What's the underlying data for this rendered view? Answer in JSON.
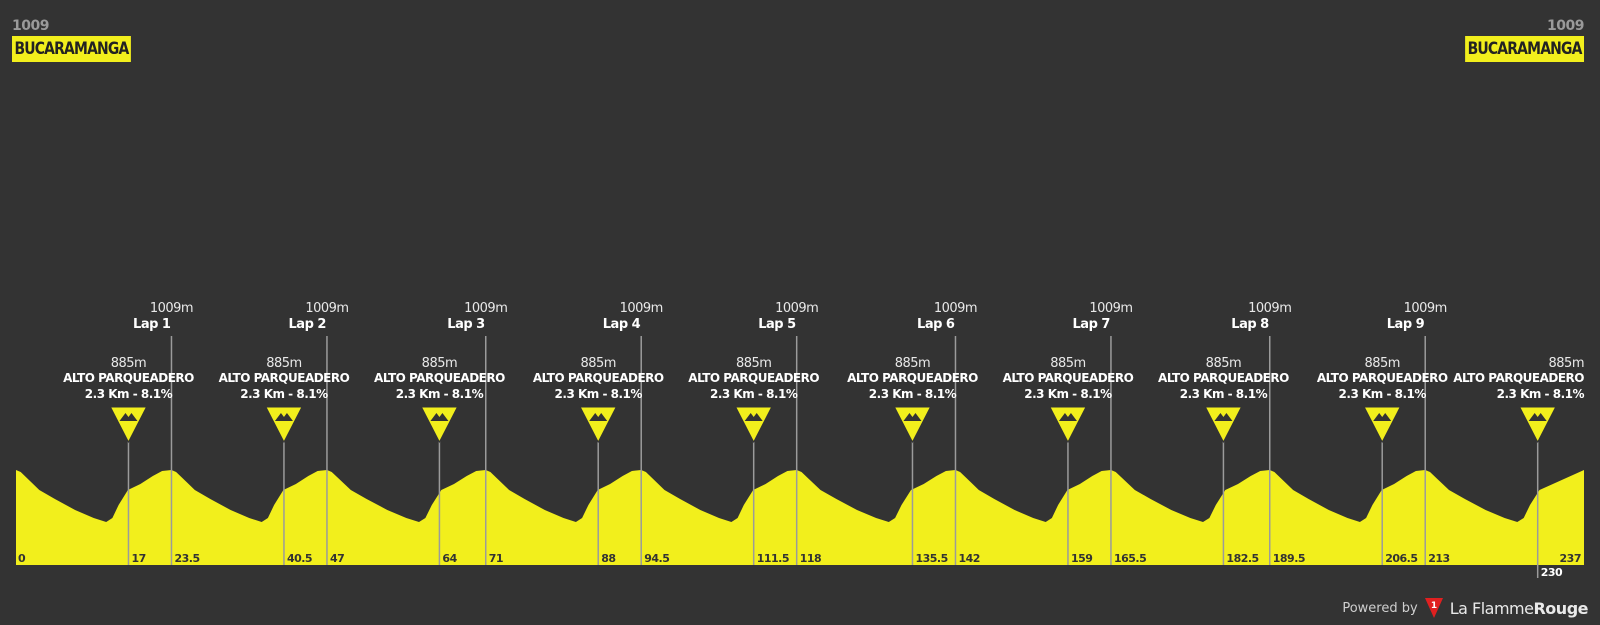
{
  "start": {
    "altitude": "1009",
    "name": "BUCARAMANGA"
  },
  "finish": {
    "altitude": "1009",
    "name": "BUCARAMANGA"
  },
  "laps": [
    {
      "label": "Lap 1",
      "altitude": "1009m",
      "km": 23.5,
      "km_label": "23.5"
    },
    {
      "label": "Lap 2",
      "altitude": "1009m",
      "km": 47,
      "km_label": "47"
    },
    {
      "label": "Lap 3",
      "altitude": "1009m",
      "km": 71,
      "km_label": "71"
    },
    {
      "label": "Lap 4",
      "altitude": "1009m",
      "km": 94.5,
      "km_label": "94.5"
    },
    {
      "label": "Lap 5",
      "altitude": "1009m",
      "km": 118,
      "km_label": "118"
    },
    {
      "label": "Lap 6",
      "altitude": "1009m",
      "km": 142,
      "km_label": "142"
    },
    {
      "label": "Lap 7",
      "altitude": "1009m",
      "km": 165.5,
      "km_label": "165.5"
    },
    {
      "label": "Lap 8",
      "altitude": "1009m",
      "km": 189.5,
      "km_label": "189.5"
    },
    {
      "label": "Lap 9",
      "altitude": "1009m",
      "km": 213,
      "km_label": "213"
    }
  ],
  "climbs": [
    {
      "name": "ALTO PARQUEADERO",
      "altitude": "885m",
      "detail": "2.3 Km - 8.1%",
      "km": 17,
      "km_label": "17"
    },
    {
      "name": "ALTO PARQUEADERO",
      "altitude": "885m",
      "detail": "2.3 Km - 8.1%",
      "km": 40.5,
      "km_label": "40.5"
    },
    {
      "name": "ALTO PARQUEADERO",
      "altitude": "885m",
      "detail": "2.3 Km - 8.1%",
      "km": 64,
      "km_label": "64"
    },
    {
      "name": "ALTO PARQUEADERO",
      "altitude": "885m",
      "detail": "2.3 Km - 8.1%",
      "km": 88,
      "km_label": "88"
    },
    {
      "name": "ALTO PARQUEADERO",
      "altitude": "885m",
      "detail": "2.3 Km - 8.1%",
      "km": 111.5,
      "km_label": "111.5"
    },
    {
      "name": "ALTO PARQUEADERO",
      "altitude": "885m",
      "detail": "2.3 Km - 8.1%",
      "km": 135.5,
      "km_label": "135.5"
    },
    {
      "name": "ALTO PARQUEADERO",
      "altitude": "885m",
      "detail": "2.3 Km - 8.1%",
      "km": 159,
      "km_label": "159"
    },
    {
      "name": "ALTO PARQUEADERO",
      "altitude": "885m",
      "detail": "2.3 Km - 8.1%",
      "km": 182.5,
      "km_label": "182.5"
    },
    {
      "name": "ALTO PARQUEADERO",
      "altitude": "885m",
      "detail": "2.3 Km - 8.1%",
      "km": 206.5,
      "km_label": "206.5"
    },
    {
      "name": "ALTO PARQUEADERO",
      "altitude": "885m",
      "detail": "2.3 Km - 8.1%",
      "km": 230,
      "km_label": "230"
    }
  ],
  "distance": {
    "start_label": "0",
    "start": 0,
    "total": 237,
    "total_label": "237"
  },
  "icons": {
    "climb": "mountain-triangle-icon",
    "brand": "flamme-rouge-flag-icon"
  },
  "colors": {
    "background": "#333333",
    "profile": "#f2ef1c",
    "line": "#9b9b9b",
    "text": "#ffffff"
  },
  "footer": {
    "powered_by": "Powered by",
    "brand_light": "La Flamme",
    "brand_bold": "Rouge"
  }
}
